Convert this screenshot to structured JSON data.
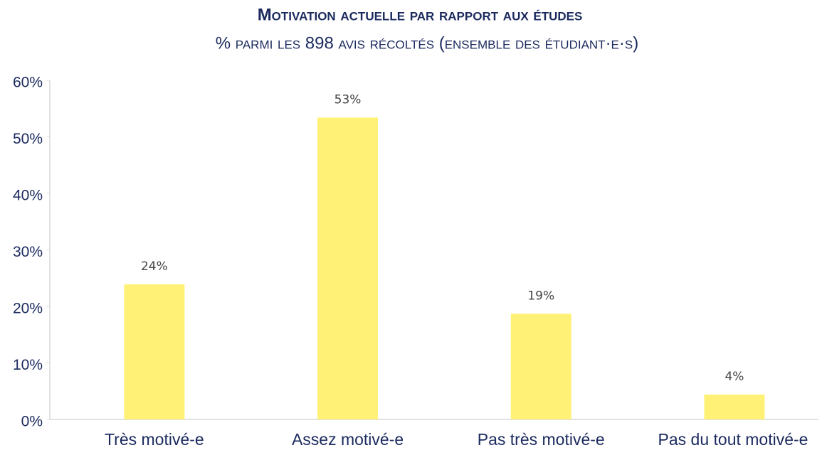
{
  "chart_data": {
    "type": "bar",
    "title": "Motivation actuelle par rapport aux études",
    "subtitle": "% parmi les 898 avis récoltés (ensemble des étudiant·e·s)",
    "categories": [
      "Très motivé-e",
      "Assez motivé-e",
      "Pas très motivé-e",
      "Pas du tout motivé-e"
    ],
    "values": [
      23.9,
      53.4,
      18.7,
      4.4
    ],
    "value_labels": [
      "24%",
      "53%",
      "19%",
      "4%"
    ],
    "color": "#fff176",
    "ylim": [
      0,
      60
    ],
    "yticks": [
      {
        "value": 0,
        "label": "0%"
      },
      {
        "value": 10,
        "label": "10%"
      },
      {
        "value": 20,
        "label": "20%"
      },
      {
        "value": 30,
        "label": "30%"
      },
      {
        "value": 40,
        "label": "40%"
      },
      {
        "value": 50,
        "label": "50%"
      },
      {
        "value": 60,
        "label": "60%"
      }
    ],
    "grid": false
  }
}
